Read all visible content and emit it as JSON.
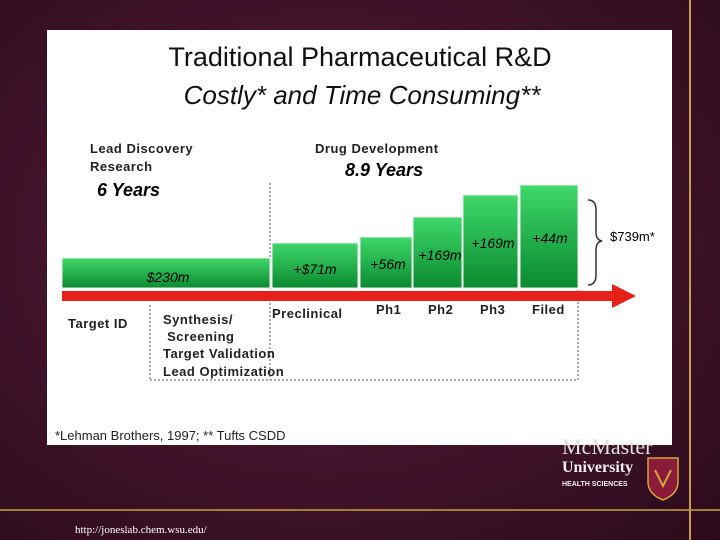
{
  "title": "Traditional Pharmaceutical R&D",
  "subtitle": "Costly* and Time Consuming**",
  "phases": [
    {
      "label_lines": [
        "Lead Discovery",
        "Research"
      ],
      "duration": "6 Years"
    },
    {
      "label_lines": [
        "Drug Development"
      ],
      "duration": "8.9 Years"
    }
  ],
  "costs": [
    "$230m",
    "+$71m",
    "+56m",
    "+169m",
    "+169m",
    "+44m"
  ],
  "total": "$739m*",
  "stages": {
    "target_id": "Target ID",
    "discovery_steps": [
      "Synthesis/",
      " Screening",
      "Target Validation",
      "Lead Optimization"
    ],
    "development_steps": [
      "Preclinical",
      "Ph1",
      "Ph2",
      "Ph3",
      "Filed"
    ]
  },
  "footnote": "*Lehman Brothers, 1997; ** Tufts CSDD",
  "url": "http://joneslab.chem.wsu.edu/",
  "logo": {
    "name": "McMaster",
    "line2": "University",
    "line3": "HEALTH SCIENCES"
  }
}
